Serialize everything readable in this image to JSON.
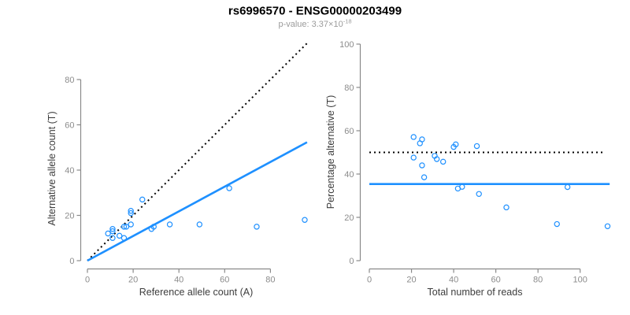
{
  "header": {
    "title": "rs6996570 - ENSG00000203499",
    "p_value_prefix": "p-value: 3.37×10",
    "p_value_exponent": "-18"
  },
  "colors": {
    "accent_blue": "#1E90FF",
    "dotted_black": "#000000",
    "axis_gray": "#8a8a8a",
    "tick_label_gray": "#8c8c8c",
    "axis_title_gray": "#3d3d3d",
    "subtitle_gray": "#9b9b9b"
  },
  "chart_data": [
    {
      "type": "scatter",
      "panel": "left",
      "xlabel": "Reference allele count (A)",
      "ylabel": "Alternative allele count (T)",
      "xlim": [
        0,
        97
      ],
      "ylim": [
        0,
        96
      ],
      "xticks": [
        0,
        20,
        40,
        60,
        80
      ],
      "yticks": [
        0,
        20,
        40,
        60,
        80
      ],
      "grid": false,
      "points": [
        [
          9,
          12
        ],
        [
          11,
          10
        ],
        [
          11,
          13
        ],
        [
          11,
          14
        ],
        [
          14,
          11
        ],
        [
          16,
          10
        ],
        [
          16,
          15
        ],
        [
          17,
          15
        ],
        [
          19,
          16
        ],
        [
          19,
          21
        ],
        [
          19,
          22
        ],
        [
          24,
          27
        ],
        [
          28,
          14
        ],
        [
          29,
          15
        ],
        [
          36,
          16
        ],
        [
          49,
          16
        ],
        [
          62,
          32
        ],
        [
          74,
          15
        ],
        [
          95,
          18
        ]
      ],
      "lines": [
        {
          "name": "identity-line",
          "style": "dotted",
          "color": "#000000",
          "x1": 0,
          "y1": 0,
          "x2": 96,
          "y2": 96
        },
        {
          "name": "fit-line",
          "style": "solid",
          "color": "#1E90FF",
          "x1": 0,
          "y1": 0,
          "x2": 96,
          "y2": 52.3
        }
      ]
    },
    {
      "type": "scatter",
      "panel": "right",
      "xlabel": "Total number of reads",
      "ylabel": "Percentage alternative (T)",
      "xlim": [
        0,
        115
      ],
      "ylim": [
        0,
        101
      ],
      "xticks": [
        0,
        20,
        40,
        60,
        80,
        100
      ],
      "yticks": [
        0,
        20,
        40,
        60,
        80,
        100
      ],
      "grid": false,
      "points": [
        [
          21,
          57.1
        ],
        [
          21,
          47.6
        ],
        [
          24,
          54.2
        ],
        [
          25,
          56.0
        ],
        [
          25,
          44.0
        ],
        [
          26,
          38.5
        ],
        [
          31,
          48.4
        ],
        [
          32,
          46.9
        ],
        [
          35,
          45.7
        ],
        [
          40,
          52.5
        ],
        [
          41,
          53.7
        ],
        [
          42,
          33.3
        ],
        [
          44,
          34.1
        ],
        [
          51,
          52.9
        ],
        [
          52,
          30.8
        ],
        [
          65,
          24.6
        ],
        [
          89,
          16.9
        ],
        [
          94,
          34.0
        ],
        [
          113,
          15.9
        ]
      ],
      "lines": [
        {
          "name": "expected-50pct-line",
          "style": "dotted",
          "color": "#000000",
          "x1": 0,
          "y1": 50,
          "x2": 112,
          "y2": 50
        },
        {
          "name": "fit-line",
          "style": "solid",
          "color": "#1E90FF",
          "x1": 0,
          "y1": 35.4,
          "x2": 114,
          "y2": 35.4
        }
      ]
    }
  ]
}
